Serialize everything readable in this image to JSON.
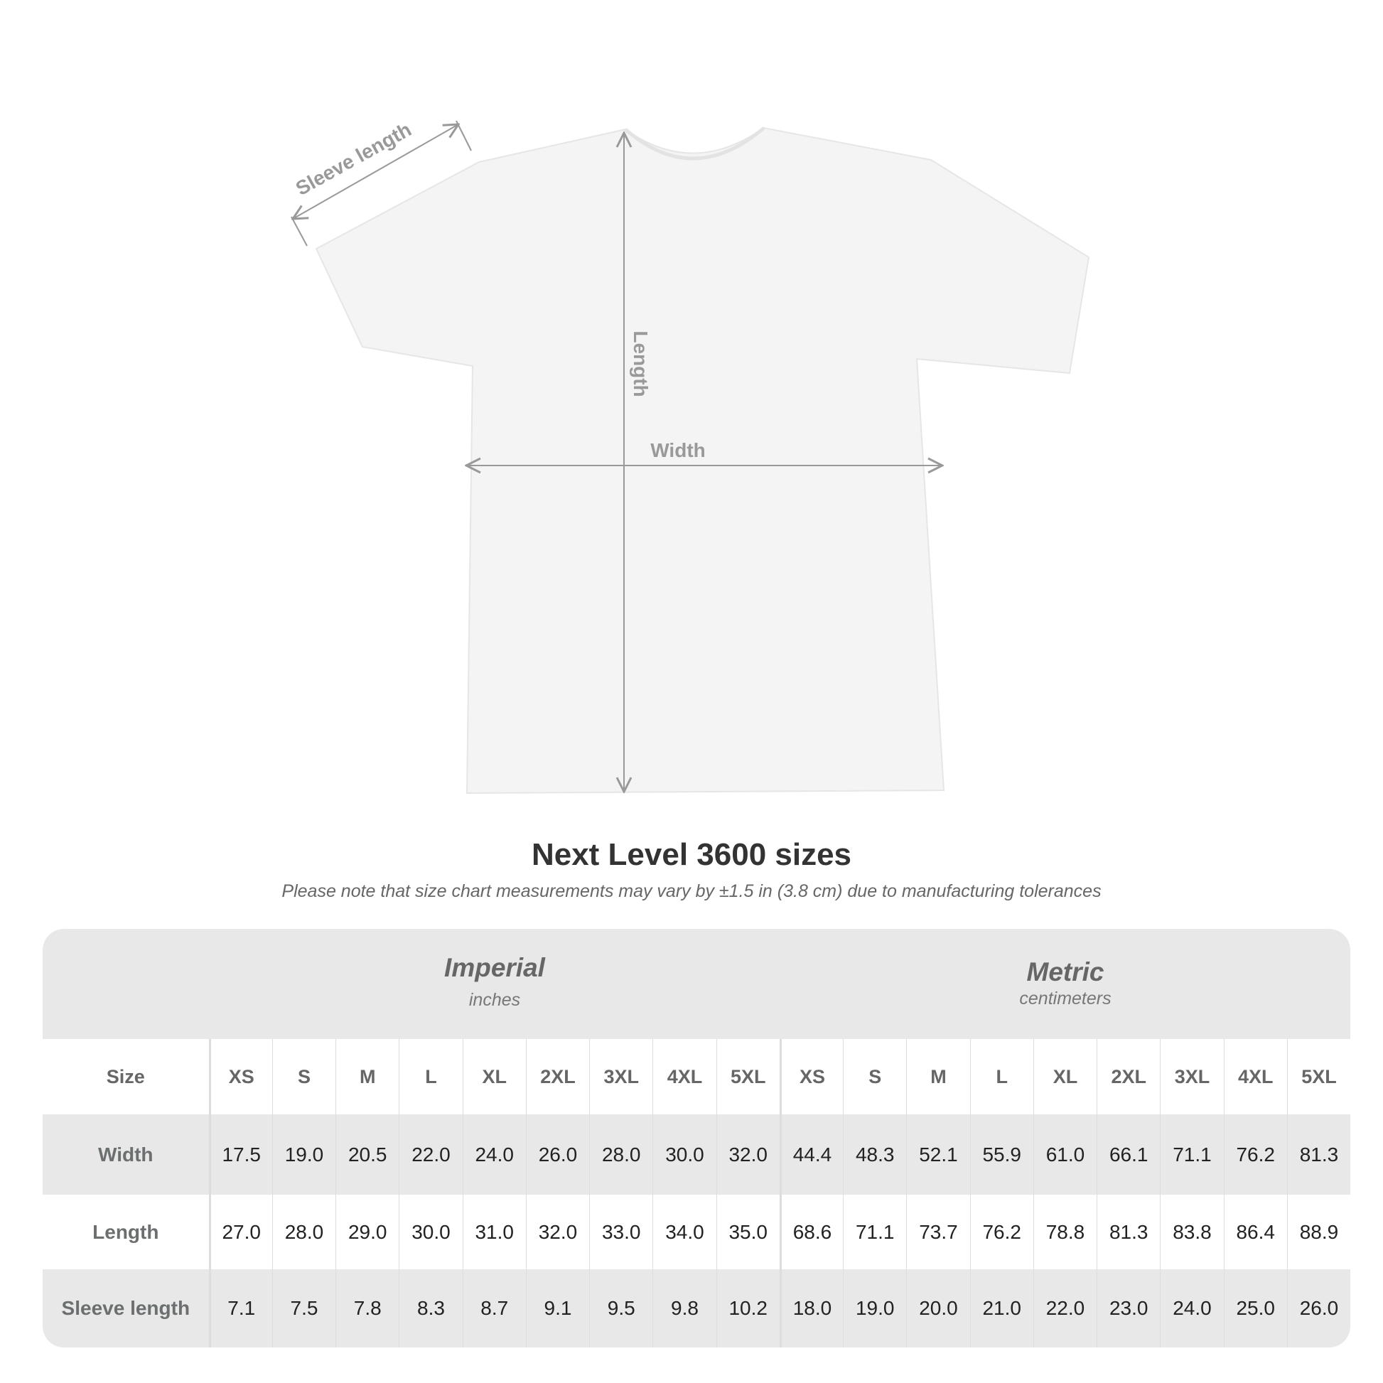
{
  "diagram": {
    "labels": {
      "sleeve": "Sleeve length",
      "length": "Length",
      "width": "Width"
    },
    "shirt_color": "#f4f4f4",
    "arrow_color": "#999999"
  },
  "title": "Next Level 3600 sizes",
  "note": "Please note that size chart measurements may vary by ±1.5 in (3.8 cm) due to manufacturing tolerances",
  "table": {
    "imperial": {
      "name": "Imperial",
      "unit": "inches"
    },
    "metric": {
      "name": "Metric",
      "unit": "centimeters"
    },
    "size_label": "Size",
    "sizes": [
      "XS",
      "S",
      "M",
      "L",
      "XL",
      "2XL",
      "3XL",
      "4XL",
      "5XL"
    ],
    "rows": [
      {
        "label": "Width",
        "imperial": [
          "17.5",
          "19.0",
          "20.5",
          "22.0",
          "24.0",
          "26.0",
          "28.0",
          "30.0",
          "32.0"
        ],
        "metric": [
          "44.4",
          "48.3",
          "52.1",
          "55.9",
          "61.0",
          "66.1",
          "71.1",
          "76.2",
          "81.3"
        ]
      },
      {
        "label": "Length",
        "imperial": [
          "27.0",
          "28.0",
          "29.0",
          "30.0",
          "31.0",
          "32.0",
          "33.0",
          "34.0",
          "35.0"
        ],
        "metric": [
          "68.6",
          "71.1",
          "73.7",
          "76.2",
          "78.8",
          "81.3",
          "83.8",
          "86.4",
          "88.9"
        ]
      },
      {
        "label": "Sleeve length",
        "imperial": [
          "7.1",
          "7.5",
          "7.8",
          "8.3",
          "8.7",
          "9.1",
          "9.5",
          "9.8",
          "10.2"
        ],
        "metric": [
          "18.0",
          "19.0",
          "20.0",
          "21.0",
          "22.0",
          "23.0",
          "24.0",
          "25.0",
          "26.0"
        ]
      }
    ]
  }
}
